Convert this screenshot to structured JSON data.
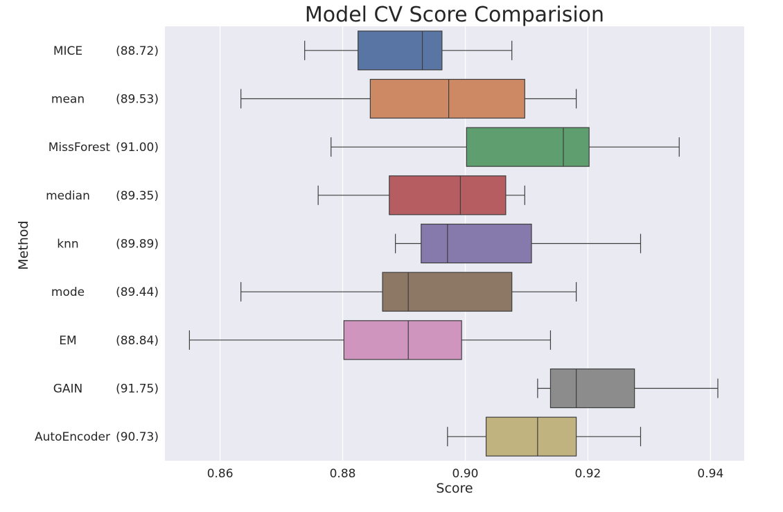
{
  "chart_data": {
    "type": "box",
    "orientation": "horizontal",
    "title": "Model CV Score Comparision",
    "xlabel": "Score",
    "ylabel": "Method",
    "xlim": [
      0.851,
      0.9455
    ],
    "xticks": [
      0.86,
      0.88,
      0.9,
      0.92,
      0.94
    ],
    "xtick_labels": [
      "0.86",
      "0.88",
      "0.90",
      "0.92",
      "0.94"
    ],
    "grid": "vertical",
    "categories": [
      {
        "name": "MICE",
        "score": "(88.72)",
        "whisker_low": 0.8738,
        "q1": 0.8825,
        "median": 0.893,
        "q3": 0.8962,
        "whisker_high": 0.9076,
        "color": "#5875a4"
      },
      {
        "name": "mean",
        "score": "(89.53)",
        "whisker_low": 0.8634,
        "q1": 0.8845,
        "median": 0.8973,
        "q3": 0.9097,
        "whisker_high": 0.9181,
        "color": "#cc8963"
      },
      {
        "name": "MissForest",
        "score": "(91.00)",
        "whisker_low": 0.8781,
        "q1": 0.9002,
        "median": 0.916,
        "q3": 0.9202,
        "whisker_high": 0.9349,
        "color": "#5f9e6e"
      },
      {
        "name": "median",
        "score": "(89.35)",
        "whisker_low": 0.876,
        "q1": 0.8876,
        "median": 0.8992,
        "q3": 0.9066,
        "whisker_high": 0.9097,
        "color": "#b55d60"
      },
      {
        "name": "knn",
        "score": "(89.89)",
        "whisker_low": 0.8886,
        "q1": 0.8928,
        "median": 0.8971,
        "q3": 0.9108,
        "whisker_high": 0.9286,
        "color": "#857aab"
      },
      {
        "name": "mode",
        "score": "(89.44)",
        "whisker_low": 0.8634,
        "q1": 0.8865,
        "median": 0.8907,
        "q3": 0.9076,
        "whisker_high": 0.9181,
        "color": "#8d7866"
      },
      {
        "name": "EM",
        "score": "(88.84)",
        "whisker_low": 0.855,
        "q1": 0.8802,
        "median": 0.8907,
        "q3": 0.8994,
        "whisker_high": 0.9139,
        "color": "#d095bf"
      },
      {
        "name": "GAIN",
        "score": "(91.75)",
        "whisker_low": 0.9118,
        "q1": 0.9139,
        "median": 0.9181,
        "q3": 0.9276,
        "whisker_high": 0.9412,
        "color": "#8c8c8c"
      },
      {
        "name": "AutoEncoder",
        "score": "(90.73)",
        "whisker_low": 0.8971,
        "q1": 0.9034,
        "median": 0.9118,
        "q3": 0.9181,
        "whisker_high": 0.9286,
        "color": "#c1b37f"
      }
    ]
  }
}
